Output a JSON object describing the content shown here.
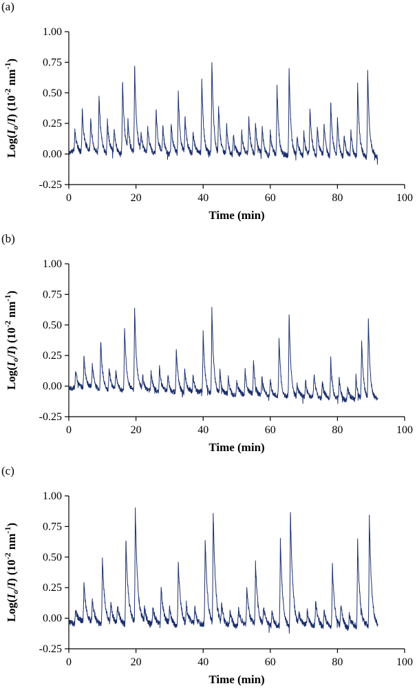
{
  "figure": {
    "background": "#ffffff",
    "line_color": "#1b2f6e",
    "axis_color": "#000000",
    "ylabel_parts": [
      {
        "t": "Log(",
        "s": "n"
      },
      {
        "t": "I",
        "s": "i"
      },
      {
        "t": "o",
        "s": "sub"
      },
      {
        "t": "/",
        "s": "n"
      },
      {
        "t": "I",
        "s": "i"
      },
      {
        "t": ") (10",
        "s": "n"
      },
      {
        "t": "-2",
        "s": "sup"
      },
      {
        "t": " nm",
        "s": "n"
      },
      {
        "t": "-1",
        "s": "sup"
      },
      {
        "t": ")",
        "s": "n"
      }
    ]
  },
  "chart_data": [
    {
      "type": "line",
      "title": "(a)",
      "xlabel": "Time (min)",
      "ylabel": "Log(Io/I) (10-2 nm-1)",
      "xlim": [
        0,
        100
      ],
      "ylim": [
        -0.25,
        1.0
      ],
      "grid": false,
      "legend": null,
      "x_ticks": [
        {
          "v": 0,
          "label": "0"
        },
        {
          "v": 20,
          "label": "20"
        },
        {
          "v": 40,
          "label": "40"
        },
        {
          "v": 60,
          "label": "60"
        },
        {
          "v": 80,
          "label": "80"
        },
        {
          "v": 100,
          "label": "100"
        }
      ],
      "y_ticks": [
        {
          "v": -0.25,
          "label": "-0.25"
        },
        {
          "v": 0,
          "label": "0.00"
        },
        {
          "v": 0.25,
          "label": "0.25"
        },
        {
          "v": 0.5,
          "label": "0.50"
        },
        {
          "v": 0.75,
          "label": "0.75"
        },
        {
          "v": 1,
          "label": "1.00"
        }
      ],
      "seed": 11,
      "t_end": 92,
      "decay": 0.55,
      "baseline": {
        "start": 0.02,
        "end": -0.03,
        "noise": 0.022
      },
      "spikes": [
        [
          1.8,
          0.17
        ],
        [
          4,
          0.36
        ],
        [
          6.5,
          0.28
        ],
        [
          9,
          0.47
        ],
        [
          11.5,
          0.27
        ],
        [
          13.5,
          0.2
        ],
        [
          16,
          0.59
        ],
        [
          17.6,
          0.24
        ],
        [
          19.6,
          0.71
        ],
        [
          21.5,
          0.15
        ],
        [
          23.5,
          0.2
        ],
        [
          26,
          0.37
        ],
        [
          28,
          0.21
        ],
        [
          30.5,
          0.25
        ],
        [
          32.6,
          0.5
        ],
        [
          34.6,
          0.29
        ],
        [
          37,
          0.19
        ],
        [
          39.6,
          0.61
        ],
        [
          42.6,
          0.76
        ],
        [
          44.6,
          0.4
        ],
        [
          47,
          0.24
        ],
        [
          49,
          0.17
        ],
        [
          51.5,
          0.2
        ],
        [
          53.6,
          0.28
        ],
        [
          55.6,
          0.26
        ],
        [
          57.6,
          0.21
        ],
        [
          60,
          0.19
        ],
        [
          62,
          0.58
        ],
        [
          65.6,
          0.73
        ],
        [
          68,
          0.14
        ],
        [
          70,
          0.19
        ],
        [
          71.8,
          0.38
        ],
        [
          74,
          0.24
        ],
        [
          76,
          0.26
        ],
        [
          78,
          0.46
        ],
        [
          80,
          0.29
        ],
        [
          82,
          0.19
        ],
        [
          84,
          0.21
        ],
        [
          86,
          0.58
        ],
        [
          89,
          0.71
        ]
      ]
    },
    {
      "type": "line",
      "title": "(b)",
      "xlabel": "Time (min)",
      "ylabel": "Log(Io/I) (10-2 nm-1)",
      "xlim": [
        0,
        100
      ],
      "ylim": [
        -0.25,
        1.0
      ],
      "grid": false,
      "legend": null,
      "x_ticks": [
        {
          "v": 0,
          "label": "0"
        },
        {
          "v": 20,
          "label": "20"
        },
        {
          "v": 40,
          "label": "40"
        },
        {
          "v": 60,
          "label": "60"
        },
        {
          "v": 80,
          "label": "80"
        },
        {
          "v": 100,
          "label": "100"
        }
      ],
      "y_ticks": [
        {
          "v": -0.25,
          "label": "-0.25"
        },
        {
          "v": 0,
          "label": "0.00"
        },
        {
          "v": 0.25,
          "label": "0.25"
        },
        {
          "v": 0.5,
          "label": "0.50"
        },
        {
          "v": 0.75,
          "label": "0.75"
        },
        {
          "v": 1,
          "label": "1.00"
        }
      ],
      "seed": 22,
      "t_end": 92,
      "decay": 0.55,
      "baseline": {
        "start": -0.01,
        "end": -0.12,
        "noise": 0.02
      },
      "spikes": [
        [
          2,
          0.14
        ],
        [
          4.5,
          0.27
        ],
        [
          7,
          0.19
        ],
        [
          9.5,
          0.39
        ],
        [
          12,
          0.19
        ],
        [
          14,
          0.14
        ],
        [
          16.6,
          0.52
        ],
        [
          19.6,
          0.69
        ],
        [
          22,
          0.11
        ],
        [
          24.5,
          0.14
        ],
        [
          27,
          0.22
        ],
        [
          29.5,
          0.14
        ],
        [
          32,
          0.35
        ],
        [
          34.5,
          0.19
        ],
        [
          37,
          0.14
        ],
        [
          40,
          0.5
        ],
        [
          42.6,
          0.69
        ],
        [
          45,
          0.19
        ],
        [
          47.5,
          0.14
        ],
        [
          50,
          0.11
        ],
        [
          52.5,
          0.21
        ],
        [
          55,
          0.27
        ],
        [
          57.5,
          0.14
        ],
        [
          60,
          0.14
        ],
        [
          62.6,
          0.49
        ],
        [
          65.6,
          0.68
        ],
        [
          68,
          0.1
        ],
        [
          70.5,
          0.14
        ],
        [
          73,
          0.19
        ],
        [
          75.5,
          0.14
        ],
        [
          78,
          0.34
        ],
        [
          80.5,
          0.17
        ],
        [
          83,
          0.11
        ],
        [
          85.5,
          0.2
        ],
        [
          87.2,
          0.47
        ],
        [
          89.2,
          0.67
        ]
      ]
    },
    {
      "type": "line",
      "title": "(c)",
      "xlabel": "Time (min)",
      "ylabel": "Log(Io/I) (10-2 nm-1)",
      "xlim": [
        0,
        100
      ],
      "ylim": [
        -0.25,
        1.0
      ],
      "grid": false,
      "legend": null,
      "x_ticks": [
        {
          "v": 0,
          "label": "0"
        },
        {
          "v": 20,
          "label": "20"
        },
        {
          "v": 40,
          "label": "40"
        },
        {
          "v": 60,
          "label": "60"
        },
        {
          "v": 80,
          "label": "80"
        },
        {
          "v": 100,
          "label": "100"
        }
      ],
      "y_ticks": [
        {
          "v": -0.25,
          "label": "-0.25"
        },
        {
          "v": 0,
          "label": "0.00"
        },
        {
          "v": 0.25,
          "label": "0.25"
        },
        {
          "v": 0.5,
          "label": "0.50"
        },
        {
          "v": 0.75,
          "label": "0.75"
        },
        {
          "v": 1,
          "label": "1.00"
        }
      ],
      "seed": 33,
      "t_end": 92,
      "decay": 0.7,
      "baseline": {
        "start": -0.04,
        "end": -0.08,
        "noise": 0.024
      },
      "spikes": [
        [
          2,
          0.12
        ],
        [
          4.5,
          0.33
        ],
        [
          7,
          0.17
        ],
        [
          10,
          0.53
        ],
        [
          12.5,
          0.17
        ],
        [
          14.5,
          0.14
        ],
        [
          17,
          0.7
        ],
        [
          19.8,
          0.94
        ],
        [
          22.5,
          0.11
        ],
        [
          25,
          0.14
        ],
        [
          27.5,
          0.33
        ],
        [
          30,
          0.14
        ],
        [
          32.6,
          0.51
        ],
        [
          35,
          0.17
        ],
        [
          37.5,
          0.13
        ],
        [
          40.6,
          0.7
        ],
        [
          43,
          0.92
        ],
        [
          45.5,
          0.17
        ],
        [
          48,
          0.11
        ],
        [
          50.5,
          0.14
        ],
        [
          53,
          0.31
        ],
        [
          55.6,
          0.5
        ],
        [
          58,
          0.14
        ],
        [
          60.5,
          0.13
        ],
        [
          63,
          0.7
        ],
        [
          66,
          0.93
        ],
        [
          68.5,
          0.1
        ],
        [
          71,
          0.12
        ],
        [
          73.5,
          0.19
        ],
        [
          76,
          0.14
        ],
        [
          78.5,
          0.51
        ],
        [
          81,
          0.17
        ],
        [
          83.5,
          0.11
        ],
        [
          86,
          0.7
        ],
        [
          89.5,
          0.9
        ]
      ]
    }
  ]
}
